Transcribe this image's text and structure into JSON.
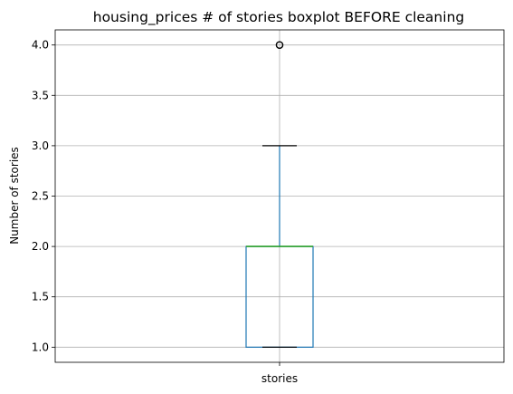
{
  "chart_data": {
    "type": "boxplot",
    "title": "housing_prices # of stories boxplot BEFORE cleaning",
    "ylabel": "Number of stories",
    "xlabel": "",
    "categories": [
      "stories"
    ],
    "ylim": [
      0.85,
      4.15
    ],
    "yticks": [
      1.0,
      1.5,
      2.0,
      2.5,
      3.0,
      3.5,
      4.0
    ],
    "ytick_labels": [
      "1.0",
      "1.5",
      "2.0",
      "2.5",
      "3.0",
      "3.5",
      "4.0"
    ],
    "grid": true,
    "boxes": [
      {
        "category": "stories",
        "whisker_low": 1.0,
        "q1": 1.0,
        "median": 2.0,
        "q3": 2.0,
        "whisker_high": 3.0,
        "outliers": [
          4.0
        ]
      }
    ],
    "colors": {
      "box": "#1f77b4",
      "median": "#2ca02c",
      "cap": "#000000",
      "grid": "#b0b0b0"
    }
  }
}
